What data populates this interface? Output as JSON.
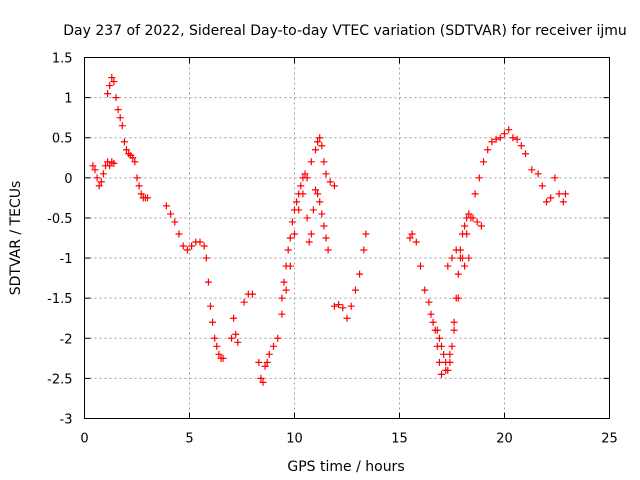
{
  "chart_data": {
    "type": "scatter",
    "title": "Day 237 of 2022, Sidereal Day-to-day VTEC variation (SDTVAR) for receiver ijmu",
    "xlabel": "GPS time / hours",
    "ylabel": "SDTVAR / TECUs",
    "xlim": [
      0,
      25
    ],
    "ylim": [
      -3,
      1.5
    ],
    "xticks": [
      0,
      5,
      10,
      15,
      20,
      25
    ],
    "yticks": [
      -3,
      -2.5,
      -2,
      -1.5,
      -1,
      -0.5,
      0,
      0.5,
      1,
      1.5
    ],
    "xtick_labels": [
      "0",
      "5",
      "10",
      "15",
      "20",
      "25"
    ],
    "ytick_labels": [
      "-3",
      "-2.5",
      "-2",
      "-1.5",
      "-1",
      "-0.5",
      "0",
      "0.5",
      "1",
      "1.5"
    ],
    "grid": true,
    "marker": "plus",
    "color": "#ff0000",
    "series": [
      {
        "x": [
          0.4,
          0.5,
          0.6,
          0.7,
          0.8,
          0.9,
          1.0,
          1.1,
          1.2,
          1.3,
          1.4,
          1.1,
          1.2,
          1.3,
          1.4,
          1.5,
          1.6,
          1.7,
          1.8,
          1.9,
          2.0,
          2.1,
          2.2,
          2.3,
          2.4,
          2.5,
          2.6,
          2.7,
          2.8,
          2.9,
          3.0,
          3.9,
          4.1,
          4.3,
          4.5,
          4.7,
          4.9,
          5.1,
          5.3,
          5.5,
          5.7,
          5.8,
          5.9,
          6.0,
          6.1,
          6.2,
          6.3,
          6.4,
          6.5,
          6.6,
          7.0,
          7.1,
          7.2,
          7.3,
          7.6,
          7.8,
          8.0,
          8.3,
          8.4,
          8.5,
          8.6,
          8.7,
          8.8,
          9.0,
          9.2,
          9.4,
          9.6,
          9.8,
          10.0,
          10.2,
          10.4,
          10.6,
          10.8,
          11.0,
          11.1,
          11.2,
          11.3,
          11.4,
          11.5,
          11.7,
          11.9,
          9.4,
          9.5,
          9.6,
          9.7,
          9.8,
          9.9,
          10.0,
          10.1,
          10.2,
          10.3,
          10.4,
          10.5,
          10.6,
          10.7,
          10.8,
          10.9,
          11.0,
          11.1,
          11.2,
          11.3,
          11.4,
          11.5,
          11.6,
          11.9,
          12.1,
          12.3,
          12.5,
          12.7,
          12.9,
          13.1,
          13.3,
          13.4,
          15.5,
          15.6,
          15.8,
          16.0,
          16.2,
          16.4,
          16.5,
          16.6,
          16.7,
          16.8,
          16.9,
          17.0,
          17.2,
          17.4,
          17.6,
          17.8,
          18.0,
          18.2,
          18.4,
          18.6,
          18.8,
          19.0,
          19.2,
          19.4,
          19.6,
          19.8,
          20.0,
          20.2,
          20.4,
          20.6,
          20.8,
          21.0,
          21.3,
          21.6,
          21.8,
          22.0,
          22.2,
          22.4,
          22.6,
          22.8,
          22.9,
          16.8,
          16.9,
          17.0,
          17.1,
          17.2,
          17.3,
          17.4,
          17.5,
          17.6,
          17.7,
          17.8,
          17.9,
          18.0,
          18.1,
          18.2,
          18.3,
          18.5,
          18.7,
          18.9,
          17.3,
          17.5,
          17.7,
          17.9,
          18.1,
          18.3
        ],
        "y": [
          0.15,
          0.1,
          0.0,
          -0.1,
          -0.05,
          0.05,
          0.15,
          0.2,
          0.15,
          0.2,
          0.18,
          1.05,
          1.15,
          1.25,
          1.2,
          1.0,
          0.85,
          0.75,
          0.65,
          0.45,
          0.35,
          0.3,
          0.28,
          0.25,
          0.2,
          0.0,
          -0.1,
          -0.2,
          -0.25,
          -0.25,
          -0.25,
          -0.35,
          -0.45,
          -0.55,
          -0.7,
          -0.85,
          -0.9,
          -0.85,
          -0.8,
          -0.8,
          -0.85,
          -1.0,
          -1.3,
          -1.6,
          -1.8,
          -2.0,
          -2.1,
          -2.2,
          -2.25,
          -2.25,
          -2.0,
          -1.75,
          -1.95,
          -2.05,
          -1.55,
          -1.45,
          -1.45,
          -2.3,
          -2.5,
          -2.55,
          -2.35,
          -2.3,
          -2.2,
          -2.1,
          -2.0,
          -1.7,
          -1.4,
          -1.1,
          -0.7,
          -0.4,
          -0.2,
          0.0,
          0.2,
          0.35,
          0.45,
          0.5,
          0.4,
          0.2,
          0.05,
          -0.05,
          -0.1,
          -1.5,
          -1.3,
          -1.1,
          -0.9,
          -0.75,
          -0.55,
          -0.4,
          -0.3,
          -0.2,
          -0.1,
          0.0,
          0.05,
          -0.5,
          -0.8,
          -0.7,
          -0.4,
          -0.15,
          -0.2,
          -0.3,
          -0.45,
          -0.6,
          -0.75,
          -0.9,
          -1.6,
          -1.58,
          -1.62,
          -1.75,
          -1.6,
          -1.4,
          -1.2,
          -0.9,
          -0.7,
          -0.75,
          -0.7,
          -0.8,
          -1.1,
          -1.4,
          -1.55,
          -1.7,
          -1.8,
          -1.9,
          -2.1,
          -2.3,
          -2.45,
          -2.4,
          -2.2,
          -1.9,
          -1.5,
          -1.0,
          -0.7,
          -0.5,
          -0.2,
          0.0,
          0.2,
          0.35,
          0.45,
          0.48,
          0.5,
          0.55,
          0.6,
          0.5,
          0.48,
          0.4,
          0.3,
          0.1,
          0.05,
          -0.1,
          -0.3,
          -0.25,
          0.0,
          -0.2,
          -0.3,
          -0.2,
          -1.9,
          -2.0,
          -2.1,
          -2.2,
          -2.3,
          -2.4,
          -2.3,
          -2.1,
          -1.8,
          -1.5,
          -1.2,
          -0.9,
          -0.7,
          -0.6,
          -0.5,
          -0.45,
          -0.5,
          -0.55,
          -0.6,
          -1.1,
          -1.0,
          -0.9,
          -1.0,
          -1.1,
          -1.0
        ]
      }
    ]
  }
}
